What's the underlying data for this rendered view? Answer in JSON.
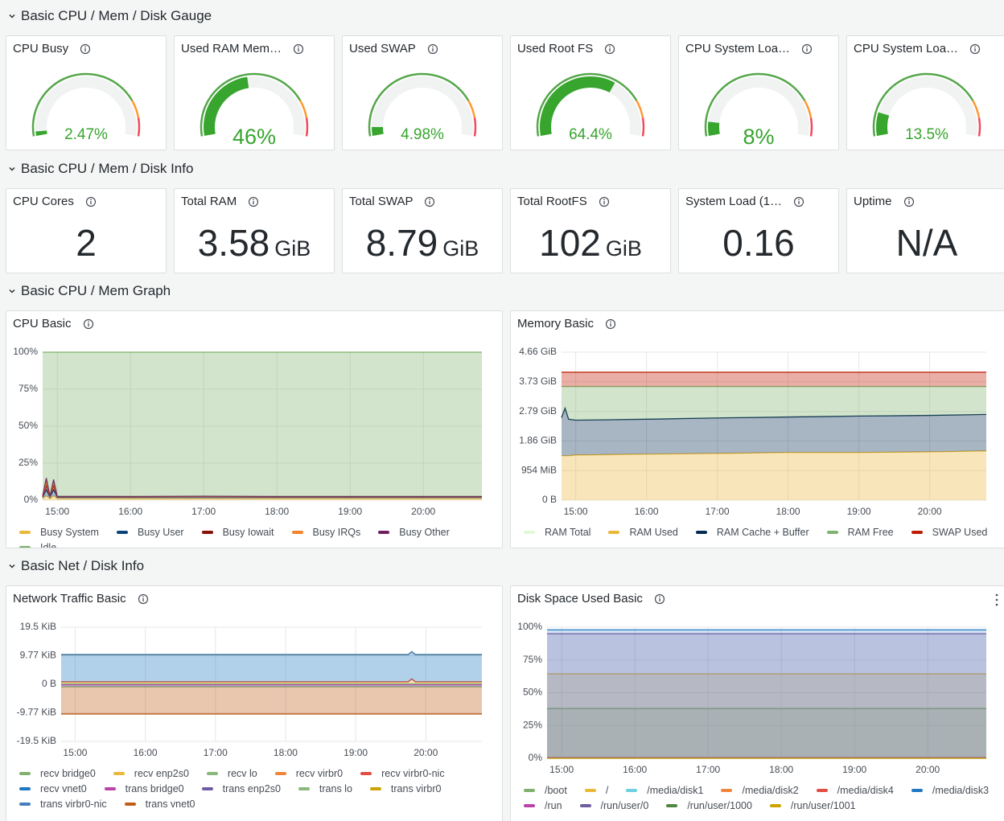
{
  "rows": [
    {
      "title": "Basic CPU / Mem / Disk Gauge"
    },
    {
      "title": "Basic CPU / Mem / Disk Info"
    },
    {
      "title": "Basic CPU / Mem Graph"
    },
    {
      "title": "Basic Net / Disk Info"
    }
  ],
  "gauges": [
    {
      "title": "CPU Busy",
      "value": 2.47,
      "label": "2.47%"
    },
    {
      "title": "Used RAM Mem…",
      "value": 46,
      "label": "46%"
    },
    {
      "title": "Used SWAP",
      "value": 4.98,
      "label": "4.98%"
    },
    {
      "title": "Used Root FS",
      "value": 64.4,
      "label": "64.4%"
    },
    {
      "title": "CPU System Loa…",
      "value": 8,
      "label": "8%"
    },
    {
      "title": "CPU System Loa…",
      "value": 13.5,
      "label": "13.5%"
    }
  ],
  "stats": [
    {
      "title": "CPU Cores",
      "value": "2"
    },
    {
      "title": "Total RAM",
      "value": "3.58",
      "unit": "GiB"
    },
    {
      "title": "Total SWAP",
      "value": "8.79",
      "unit": "GiB"
    },
    {
      "title": "Total RootFS",
      "value": "102",
      "unit": "GiB"
    },
    {
      "title": "System Load (1…",
      "value": "0.16"
    },
    {
      "title": "Uptime",
      "value": "N/A"
    }
  ],
  "charts": [
    {
      "title": "CPU Basic",
      "type": "area",
      "stacked": true,
      "x": [
        14.8,
        14.85,
        14.9,
        14.95,
        15,
        16,
        17,
        18,
        19,
        20,
        20.8
      ],
      "xlim": [
        14.8,
        20.8
      ],
      "xticks": [
        {
          "value": 15,
          "label": "15:00"
        },
        {
          "value": 16,
          "label": "16:00"
        },
        {
          "value": 17,
          "label": "17:00"
        },
        {
          "value": 18,
          "label": "18:00"
        },
        {
          "value": 19,
          "label": "19:00"
        },
        {
          "value": 20,
          "label": "20:00"
        }
      ],
      "ylim": [
        0,
        100
      ],
      "yticks": [
        {
          "value": 0,
          "label": "0%"
        },
        {
          "value": 25,
          "label": "25%"
        },
        {
          "value": 50,
          "label": "50%"
        },
        {
          "value": 75,
          "label": "75%"
        },
        {
          "value": 100,
          "label": "100%"
        }
      ],
      "series": [
        {
          "name": "Busy System",
          "color": "#EAB839",
          "values": [
            1,
            3,
            1,
            3,
            1,
            1,
            1,
            1,
            1,
            1,
            1
          ]
        },
        {
          "name": "Busy User",
          "color": "#0A437C",
          "values": [
            1,
            4,
            1,
            4,
            1,
            1,
            1.2,
            1,
            1,
            1,
            1
          ]
        },
        {
          "name": "Busy Iowait",
          "color": "#890F02",
          "values": [
            0.5,
            3,
            0.5,
            3,
            0.3,
            0.2,
            0.2,
            0.2,
            0.2,
            0.2,
            0.2
          ]
        },
        {
          "name": "Busy IRQs",
          "color": "#F2832A",
          "values": [
            0.2,
            2,
            0.2,
            2,
            0.1,
            0.1,
            0.1,
            0.1,
            0.1,
            0.1,
            0.1
          ]
        },
        {
          "name": "Busy Other",
          "color": "#6D1F62",
          "values": [
            0.3,
            3,
            0.3,
            2,
            0.2,
            0.2,
            0.2,
            0.2,
            0.2,
            0.2,
            0.2
          ]
        },
        {
          "name": "Idle",
          "color": "#7EB26D",
          "values": [
            97,
            85,
            97,
            86,
            97.4,
            97.5,
            97.3,
            97.5,
            97.5,
            97.5,
            97.5
          ]
        }
      ]
    },
    {
      "title": "Memory Basic",
      "type": "area",
      "stacked": true,
      "x": [
        14.8,
        14.85,
        14.9,
        15,
        16,
        17,
        18,
        19,
        20,
        20.8
      ],
      "xlim": [
        14.8,
        20.8
      ],
      "xticks": [
        {
          "value": 15,
          "label": "15:00"
        },
        {
          "value": 16,
          "label": "16:00"
        },
        {
          "value": 17,
          "label": "17:00"
        },
        {
          "value": 18,
          "label": "18:00"
        },
        {
          "value": 19,
          "label": "19:00"
        },
        {
          "value": 20,
          "label": "20:00"
        }
      ],
      "ylim": [
        0,
        4.66
      ],
      "yticks": [
        {
          "value": 0,
          "label": "0 B"
        },
        {
          "value": 0.93,
          "label": "954 MiB"
        },
        {
          "value": 1.86,
          "label": "1.86 GiB"
        },
        {
          "value": 2.79,
          "label": "2.79 GiB"
        },
        {
          "value": 3.73,
          "label": "3.73 GiB"
        },
        {
          "value": 4.66,
          "label": "4.66 GiB"
        }
      ],
      "series": [
        {
          "name": "RAM Total",
          "color": "#E0F9D7",
          "stack": false,
          "values": [
            3.58,
            3.58,
            3.58,
            3.58,
            3.58,
            3.58,
            3.58,
            3.58,
            3.58,
            3.58
          ]
        },
        {
          "name": "RAM Used",
          "color": "#EAB839",
          "values": [
            1.4,
            1.4,
            1.4,
            1.42,
            1.45,
            1.47,
            1.5,
            1.5,
            1.52,
            1.55
          ]
        },
        {
          "name": "RAM Cache + Buffer",
          "color": "#052B51",
          "values": [
            1.2,
            1.5,
            1.15,
            1.1,
            1.1,
            1.12,
            1.12,
            1.15,
            1.15,
            1.15
          ]
        },
        {
          "name": "RAM Free",
          "color": "#7EB26D",
          "values": [
            0.98,
            0.68,
            1.03,
            1.06,
            1.03,
            0.99,
            0.96,
            0.93,
            0.91,
            0.88
          ]
        },
        {
          "name": "SWAP Used",
          "color": "#BF1B00",
          "values": [
            0.45,
            0.45,
            0.45,
            0.45,
            0.45,
            0.45,
            0.45,
            0.45,
            0.45,
            0.45
          ]
        }
      ]
    },
    {
      "title": "Network Traffic Basic",
      "type": "area",
      "stacked": true,
      "x": [
        14.8,
        15,
        16,
        17,
        18,
        19,
        19.75,
        19.8,
        19.85,
        20,
        20.8
      ],
      "xlim": [
        14.8,
        20.8
      ],
      "xticks": [
        {
          "value": 15,
          "label": "15:00"
        },
        {
          "value": 16,
          "label": "16:00"
        },
        {
          "value": 17,
          "label": "17:00"
        },
        {
          "value": 18,
          "label": "18:00"
        },
        {
          "value": 19,
          "label": "19:00"
        },
        {
          "value": 20,
          "label": "20:00"
        }
      ],
      "ylim": [
        -19.5,
        19.5
      ],
      "yticks": [
        {
          "value": -19.5,
          "label": "-19.5 KiB"
        },
        {
          "value": -9.77,
          "label": "-9.77 KiB"
        },
        {
          "value": 0,
          "label": "0 B"
        },
        {
          "value": 9.77,
          "label": "9.77 KiB"
        },
        {
          "value": 19.5,
          "label": "19.5 KiB"
        }
      ],
      "series": [
        {
          "name": "recv bridge0",
          "color": "#7EB26D",
          "values": [
            0.2,
            0.2,
            0.2,
            0.2,
            0.2,
            0.2,
            0.2,
            0.2,
            0.2,
            0.2,
            0.2
          ]
        },
        {
          "name": "recv enp2s0",
          "color": "#EAB839",
          "values": [
            0.6,
            0.6,
            0.6,
            0.6,
            0.6,
            0.6,
            0.6,
            1.6,
            0.6,
            0.6,
            0.6
          ]
        },
        {
          "name": "recv lo",
          "color": "#8AB77B",
          "values": [
            0.05,
            0.05,
            0.05,
            0.05,
            0.05,
            0.05,
            0.05,
            0.05,
            0.05,
            0.05,
            0.05
          ]
        },
        {
          "name": "recv virbr0",
          "color": "#EF843C",
          "values": [
            0,
            0,
            0,
            0,
            0,
            0,
            0,
            0,
            0,
            0,
            0
          ]
        },
        {
          "name": "recv virbr0-nic",
          "color": "#E24D42",
          "values": [
            0,
            0,
            0,
            0,
            0,
            0,
            0,
            0,
            0,
            0,
            0
          ]
        },
        {
          "name": "recv vnet0",
          "color": "#1F78C1",
          "values": [
            9.3,
            9.3,
            9.3,
            9.3,
            9.3,
            9.3,
            9.3,
            9.3,
            9.3,
            9.3,
            9.3
          ]
        },
        {
          "name": "trans bridge0",
          "color": "#BA43A9",
          "values": [
            -0.2,
            -0.2,
            -0.2,
            -0.2,
            -0.2,
            -0.2,
            -0.2,
            -0.2,
            -0.2,
            -0.2,
            -0.2
          ]
        },
        {
          "name": "trans enp2s0",
          "color": "#705DA0",
          "values": [
            -0.6,
            -0.6,
            -0.6,
            -0.6,
            -0.6,
            -0.6,
            -0.6,
            -0.6,
            -0.6,
            -0.6,
            -0.6
          ]
        },
        {
          "name": "trans lo",
          "color": "#8AB77B",
          "values": [
            -0.05,
            -0.05,
            -0.05,
            -0.05,
            -0.05,
            -0.05,
            -0.05,
            -0.05,
            -0.05,
            -0.05,
            -0.05
          ]
        },
        {
          "name": "trans virbr0",
          "color": "#CCA300",
          "values": [
            0,
            0,
            0,
            0,
            0,
            0,
            0,
            0,
            0,
            0,
            0
          ]
        },
        {
          "name": "trans virbr0-nic",
          "color": "#447EBC",
          "values": [
            0,
            0,
            0,
            0,
            0,
            0,
            0,
            0,
            0,
            0,
            0
          ]
        },
        {
          "name": "trans vnet0",
          "color": "#C15C17",
          "values": [
            -9.3,
            -9.3,
            -9.3,
            -9.3,
            -9.3,
            -9.3,
            -9.3,
            -9.3,
            -9.3,
            -9.3,
            -9.3
          ]
        }
      ]
    },
    {
      "title": "Disk Space Used Basic",
      "type": "area",
      "stacked": false,
      "x": [
        14.8,
        20.8
      ],
      "xlim": [
        14.8,
        20.8
      ],
      "xticks": [
        {
          "value": 15,
          "label": "15:00"
        },
        {
          "value": 16,
          "label": "16:00"
        },
        {
          "value": 17,
          "label": "17:00"
        },
        {
          "value": 18,
          "label": "18:00"
        },
        {
          "value": 19,
          "label": "19:00"
        },
        {
          "value": 20,
          "label": "20:00"
        }
      ],
      "ylim": [
        0,
        100
      ],
      "yticks": [
        {
          "value": 0,
          "label": "0%"
        },
        {
          "value": 25,
          "label": "25%"
        },
        {
          "value": 50,
          "label": "50%"
        },
        {
          "value": 75,
          "label": "75%"
        },
        {
          "value": 100,
          "label": "100%"
        }
      ],
      "series": [
        {
          "name": "/boot",
          "color": "#7EB26D",
          "values": [
            38,
            38
          ]
        },
        {
          "name": "/",
          "color": "#EAB839",
          "values": [
            64.4,
            64.4
          ]
        },
        {
          "name": "/media/disk1",
          "color": "#6ED0E0",
          "values": [
            0.5,
            0.5
          ]
        },
        {
          "name": "/media/disk2",
          "color": "#EF843C",
          "values": [
            0.5,
            0.5
          ]
        },
        {
          "name": "/media/disk4",
          "color": "#E24D42",
          "values": [
            0.5,
            0.5
          ]
        },
        {
          "name": "/media/disk3",
          "color": "#1F78C1",
          "values": [
            98,
            98
          ]
        },
        {
          "name": "/run",
          "color": "#BA43A9",
          "values": [
            0.3,
            0.3
          ]
        },
        {
          "name": "/run/user/0",
          "color": "#705DA0",
          "values": [
            95,
            95
          ]
        },
        {
          "name": "/run/user/1000",
          "color": "#508642",
          "values": [
            0,
            0
          ]
        },
        {
          "name": "/run/user/1001",
          "color": "#CCA300",
          "values": [
            0,
            0
          ]
        }
      ]
    }
  ]
}
